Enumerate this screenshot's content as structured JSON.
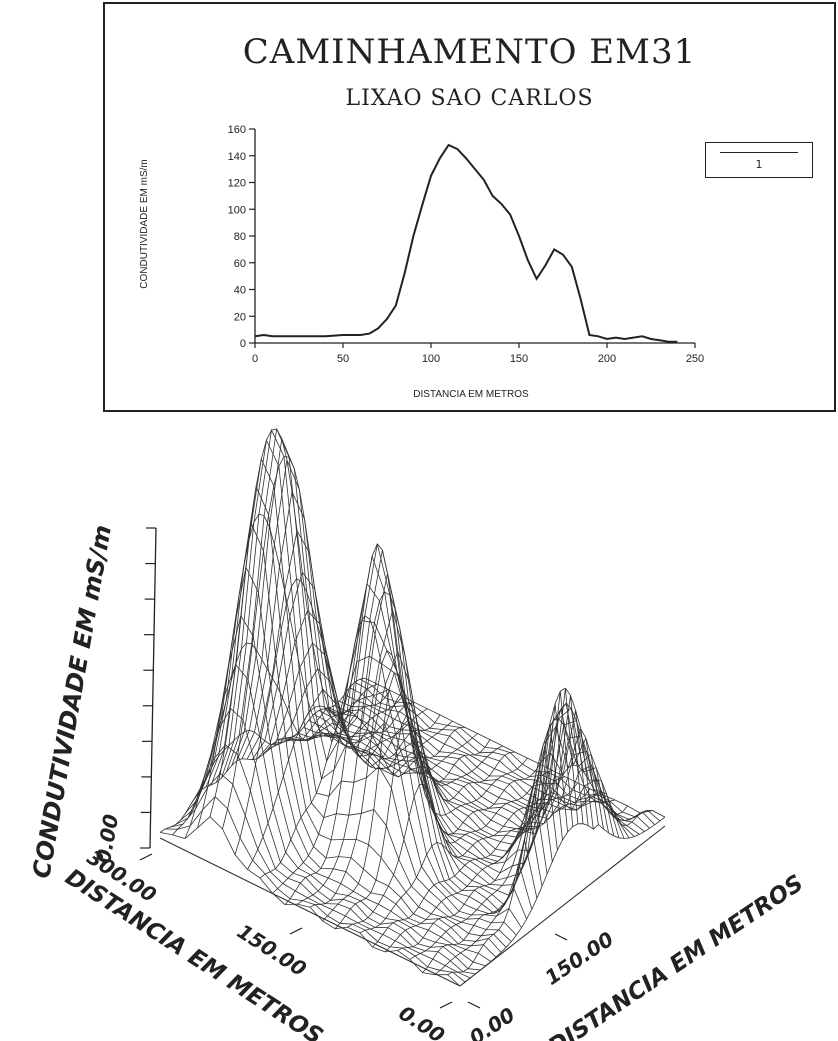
{
  "chart_data": [
    {
      "type": "line",
      "title": "CAMINHAMENTO EM31",
      "subtitle": "LIXAO SAO CARLOS",
      "xlabel": "DISTANCIA EM METROS",
      "ylabel": "CONDUTIVIDADE EM mS/m",
      "xlim": [
        0,
        250
      ],
      "ylim": [
        0,
        160
      ],
      "x_ticks": [
        "0",
        "50",
        "100",
        "150",
        "200",
        "250"
      ],
      "y_ticks": [
        "0",
        "20",
        "40",
        "60",
        "80",
        "100",
        "120",
        "140",
        "160"
      ],
      "legend": "top-right",
      "grid": false,
      "series": [
        {
          "name": "1",
          "x": [
            0,
            5,
            10,
            20,
            30,
            40,
            50,
            60,
            65,
            70,
            75,
            80,
            85,
            90,
            95,
            100,
            105,
            110,
            115,
            120,
            125,
            130,
            135,
            140,
            145,
            150,
            155,
            160,
            165,
            170,
            175,
            180,
            185,
            190,
            195,
            200,
            205,
            210,
            215,
            220,
            225,
            230,
            235,
            240
          ],
          "y": [
            5,
            6,
            5,
            5,
            5,
            5,
            6,
            6,
            7,
            11,
            18,
            28,
            52,
            80,
            103,
            125,
            138,
            148,
            145,
            138,
            130,
            122,
            110,
            104,
            96,
            80,
            62,
            48,
            58,
            70,
            66,
            57,
            33,
            6,
            5,
            3,
            4,
            3,
            4,
            5,
            3,
            2,
            1,
            1
          ]
        }
      ]
    },
    {
      "type": "surface",
      "ylabel": "CONDUTIVIDADE EM mS/m",
      "xlabel": "DISTANCIA EM METROS",
      "zlabel": "DISTANCIA EM METROS",
      "left_axis_ticks": [
        "300.00",
        "150.00",
        "0.00"
      ],
      "right_axis_ticks": [
        "0.00",
        "150.00"
      ],
      "vertical_axis_ticks": [
        "0.00"
      ],
      "grid": true
    }
  ]
}
